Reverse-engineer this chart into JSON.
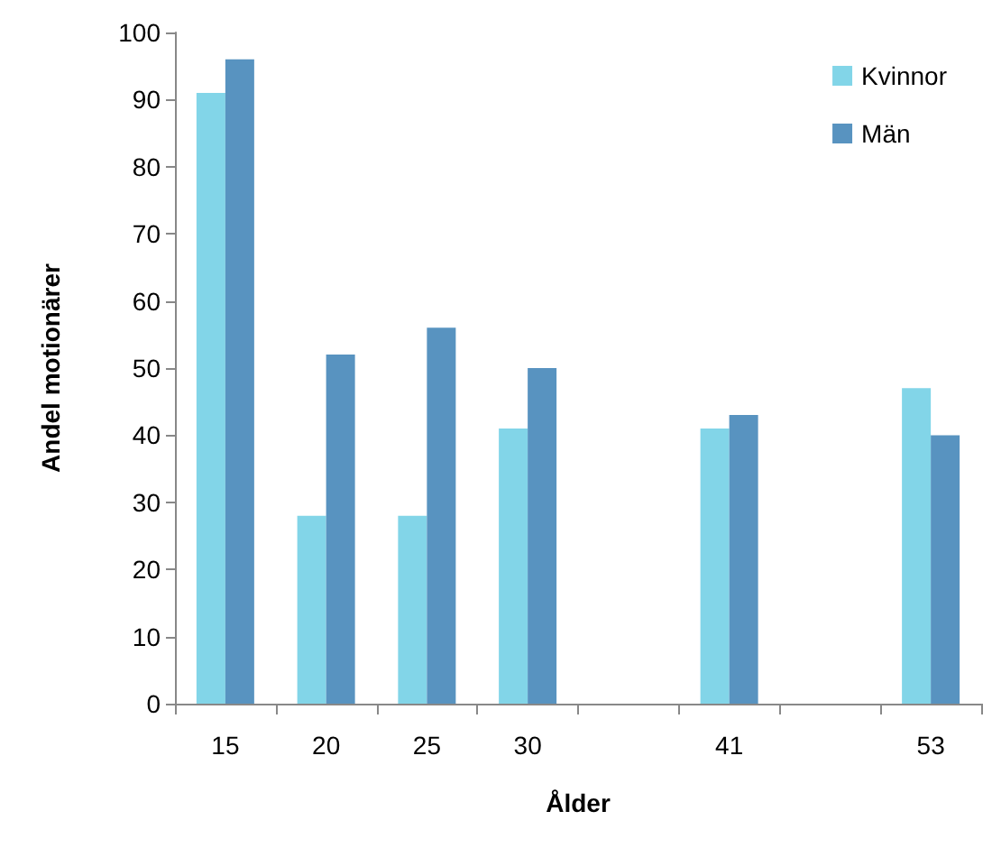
{
  "chart_data": {
    "type": "bar",
    "xlabel": "Ålder",
    "ylabel": "Andel motionärer",
    "categories": [
      "15",
      "20",
      "25",
      "30",
      null,
      "41",
      null,
      "53"
    ],
    "series": [
      {
        "name": "Kvinnor",
        "color": "#82d5e8",
        "values": [
          91,
          28,
          28,
          41,
          null,
          41,
          null,
          47
        ]
      },
      {
        "name": "Män",
        "color": "#5893c0",
        "values": [
          96,
          52,
          56,
          50,
          null,
          43,
          null,
          40
        ]
      }
    ],
    "ylim": [
      0,
      100
    ],
    "yticks": [
      0,
      10,
      20,
      30,
      40,
      50,
      60,
      70,
      80,
      90,
      100
    ],
    "grid": false,
    "legend": "top right"
  }
}
